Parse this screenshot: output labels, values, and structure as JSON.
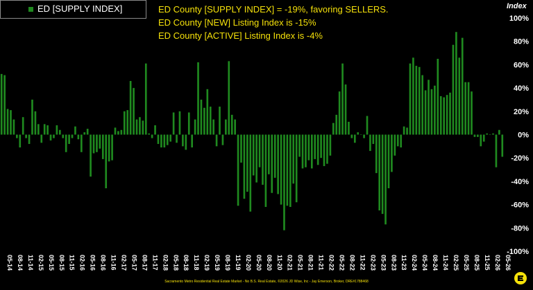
{
  "legend": {
    "label": "ED [SUPPLY INDEX]"
  },
  "notes": [
    "ED County [SUPPLY INDEX] = -19%, favoring SELLERS.",
    "ED County [NEW] Listing Index is -15%",
    "ED County [ACTIVE] Listing Index is -4%"
  ],
  "footer": "Sacramento Metro Residential Real Estate Market - No B.S. Real Estate, ©2026 JD Wise, Inc - Jay Emerson, Broker, DRE#1788468",
  "colors": {
    "bar": "#1f8a1f",
    "background": "#000000",
    "note_text": "#f5e10a",
    "axis_text": "#ffffff"
  },
  "chart_data": {
    "type": "bar",
    "title": "",
    "ylabel": "Index",
    "ylim": [
      -100,
      100
    ],
    "yticks": [
      "100%",
      "80%",
      "60%",
      "40%",
      "20%",
      "0%",
      "-20%",
      "-40%",
      "-60%",
      "-80%",
      "-100%"
    ],
    "xticks": [
      "05-14",
      "08-14",
      "11-14",
      "02-15",
      "05-15",
      "08-15",
      "11-15",
      "02-16",
      "05-16",
      "08-16",
      "11-16",
      "02-17",
      "05-17",
      "08-17",
      "11-17",
      "02-18",
      "05-18",
      "08-18",
      "11-18",
      "02-19",
      "05-19",
      "08-19",
      "11-19",
      "02-20",
      "05-20",
      "08-20",
      "11-20",
      "02-21",
      "05-21",
      "08-21",
      "11-21",
      "02-22",
      "05-22",
      "08-22",
      "11-22",
      "02-23",
      "05-23",
      "08-23",
      "11-23",
      "02-24",
      "05-24",
      "08-24",
      "11-24",
      "02-25",
      "05-25",
      "08-25",
      "11-25",
      "02-26",
      "05-26"
    ],
    "grid": false,
    "legend_position": "top-left",
    "series": [
      {
        "name": "ED [SUPPLY INDEX]",
        "values": [
          52,
          51,
          22,
          21,
          13,
          -3,
          -11,
          15,
          -3,
          -8,
          30,
          20,
          9,
          -7,
          9,
          8,
          -5,
          -3,
          8,
          4,
          -3,
          -15,
          -8,
          -3,
          7,
          -4,
          -15,
          2,
          5,
          -36,
          -16,
          -15,
          -12,
          -21,
          -46,
          -23,
          -22,
          6,
          3,
          4,
          20,
          21,
          46,
          40,
          13,
          15,
          12,
          61,
          1,
          -3,
          8,
          -8,
          -11,
          -11,
          -9,
          -6,
          19,
          -7,
          20,
          -10,
          -13,
          19,
          -11,
          13,
          62,
          30,
          23,
          39,
          24,
          13,
          -10,
          24,
          -9,
          13,
          63,
          17,
          13,
          -61,
          -24,
          -55,
          -49,
          -66,
          -35,
          -41,
          -28,
          -43,
          -62,
          -34,
          -50,
          -37,
          -51,
          -60,
          -82,
          -61,
          -62,
          -42,
          -58,
          -19,
          -29,
          -28,
          -22,
          -29,
          -21,
          -26,
          -20,
          -27,
          -25,
          -18,
          10,
          17,
          37,
          61,
          43,
          11,
          -3,
          -7,
          2,
          0,
          -3,
          16,
          -14,
          -8,
          -33,
          -65,
          -68,
          -77,
          -46,
          -32,
          -18,
          -10,
          -11,
          7,
          6,
          61,
          66,
          59,
          58,
          51,
          38,
          47,
          39,
          42,
          65,
          33,
          32,
          34,
          36,
          77,
          88,
          66,
          83,
          45,
          45,
          37,
          -2,
          -2,
          -10,
          -6,
          1,
          0,
          1,
          -28,
          4,
          -19
        ]
      }
    ]
  }
}
